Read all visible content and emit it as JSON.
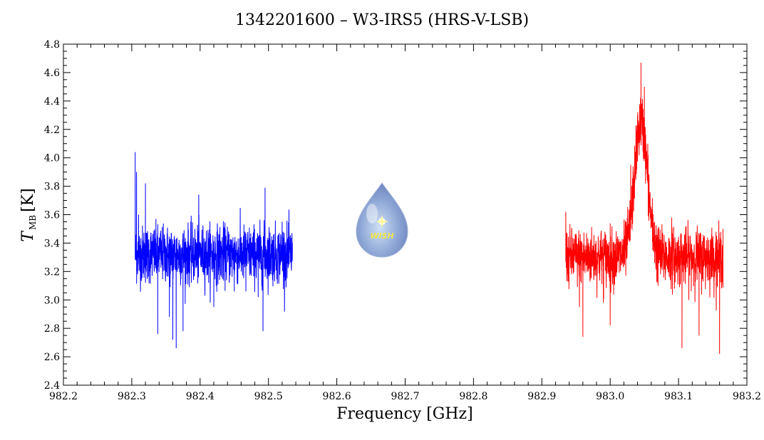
{
  "chart_data": {
    "type": "line",
    "title": "1342201600 – W3-IRS5 (HRS-V-LSB)",
    "xlabel": "Frequency [GHz]",
    "ylabel_symbol": "T",
    "ylabel_subscript": "MB",
    "ylabel_unit": "[K]",
    "xlim": [
      982.2,
      983.2
    ],
    "ylim": [
      2.4,
      4.8
    ],
    "x_ticks": [
      "982.2",
      "982.3",
      "982.4",
      "982.5",
      "982.6",
      "982.7",
      "982.8",
      "982.9",
      "983.0",
      "983.1",
      "983.2"
    ],
    "y_ticks": [
      "2.4",
      "2.6",
      "2.8",
      "3.0",
      "3.2",
      "3.4",
      "3.6",
      "3.8",
      "4.0",
      "4.2",
      "4.4",
      "4.6",
      "4.8"
    ],
    "grid": false,
    "logo_text": "WISH",
    "series": [
      {
        "color": "#0000ff",
        "x_range": [
          982.305,
          982.535
        ],
        "baseline": 3.32,
        "noise": 0.1,
        "points": [
          [
            982.305,
            4.04
          ],
          [
            982.307,
            3.9
          ],
          [
            982.31,
            3.6
          ],
          [
            982.312,
            3.2
          ],
          [
            982.32,
            3.82
          ],
          [
            982.338,
            2.76
          ],
          [
            982.355,
            2.88
          ],
          [
            982.36,
            2.72
          ],
          [
            982.365,
            2.66
          ],
          [
            982.375,
            2.78
          ],
          [
            982.398,
            3.74
          ],
          [
            982.42,
            2.95
          ],
          [
            982.45,
            3.06
          ],
          [
            982.467,
            3.06
          ],
          [
            982.485,
            3.02
          ],
          [
            982.492,
            2.78
          ],
          [
            982.495,
            3.79
          ],
          [
            982.52,
            3.55
          ],
          [
            982.535,
            3.4
          ]
        ],
        "peaks": []
      },
      {
        "color": "#ff0000",
        "x_range": [
          982.935,
          983.165
        ],
        "baseline": 3.3,
        "noise": 0.1,
        "points": [
          [
            982.935,
            3.62
          ],
          [
            982.938,
            3.2
          ],
          [
            982.955,
            2.95
          ],
          [
            982.96,
            2.74
          ],
          [
            982.99,
            2.98
          ],
          [
            983.0,
            2.82
          ],
          [
            983.03,
            3.95
          ],
          [
            983.04,
            4.3
          ],
          [
            983.045,
            4.67
          ],
          [
            983.05,
            4.5
          ],
          [
            983.055,
            4.1
          ],
          [
            983.065,
            3.55
          ],
          [
            983.07,
            3.1
          ],
          [
            983.09,
            3.58
          ],
          [
            983.105,
            2.66
          ],
          [
            983.13,
            2.75
          ],
          [
            983.16,
            2.62
          ],
          [
            983.165,
            3.5
          ]
        ],
        "peaks": [
          {
            "center": 983.045,
            "amplitude": 0.95,
            "width": 0.0095
          }
        ]
      }
    ]
  }
}
